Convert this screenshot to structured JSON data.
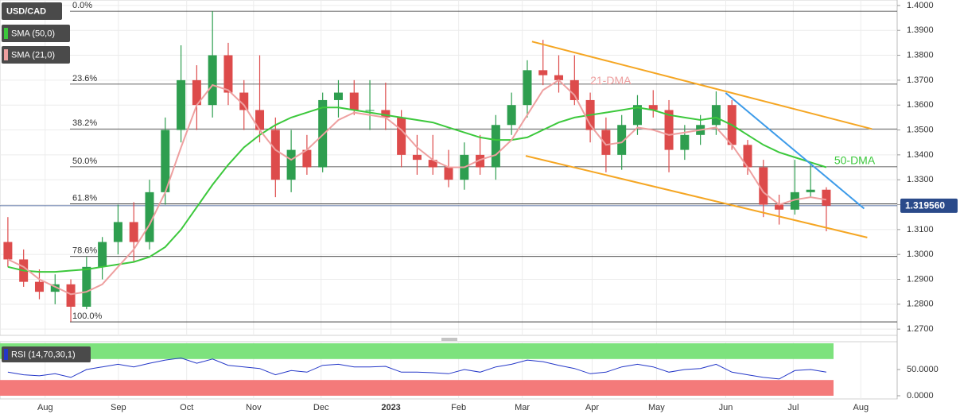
{
  "chart_data": {
    "type": "candlestick",
    "title": "USD/CAD",
    "up_color": "#2e9e4f",
    "down_color": "#dd4b4b",
    "open": [
      1.305,
      1.298,
      1.289,
      1.285,
      1.288,
      1.279,
      1.295,
      1.305,
      1.313,
      1.305,
      1.325,
      1.35,
      1.37,
      1.36,
      1.38,
      1.365,
      1.358,
      1.35,
      1.33,
      1.342,
      1.335,
      1.362,
      1.365,
      1.358,
      1.358,
      1.355,
      1.34,
      1.338,
      1.335,
      1.33,
      1.34,
      1.335,
      1.352,
      1.36,
      1.374,
      1.372,
      1.37,
      1.362,
      1.35,
      1.34,
      1.352,
      1.36,
      1.358,
      1.342,
      1.348,
      1.352,
      1.36,
      1.344,
      1.335,
      1.32,
      1.318,
      1.325,
      1.326
    ],
    "high": [
      1.315,
      1.302,
      1.294,
      1.292,
      1.29,
      1.299,
      1.307,
      1.32,
      1.321,
      1.33,
      1.355,
      1.384,
      1.376,
      1.3977,
      1.385,
      1.37,
      1.38,
      1.355,
      1.35,
      1.348,
      1.365,
      1.37,
      1.37,
      1.37,
      1.369,
      1.358,
      1.348,
      1.348,
      1.342,
      1.345,
      1.348,
      1.356,
      1.365,
      1.378,
      1.3862,
      1.38,
      1.38,
      1.365,
      1.355,
      1.356,
      1.364,
      1.366,
      1.362,
      1.352,
      1.356,
      1.3655,
      1.362,
      1.346,
      1.338,
      1.324,
      1.338,
      1.337,
      1.327
    ],
    "low": [
      1.295,
      1.287,
      1.282,
      1.28,
      1.273,
      1.278,
      1.29,
      1.3,
      1.297,
      1.302,
      1.32,
      1.345,
      1.35,
      1.355,
      1.36,
      1.35,
      1.345,
      1.323,
      1.325,
      1.332,
      1.333,
      1.355,
      1.356,
      1.35,
      1.35,
      1.335,
      1.332,
      1.332,
      1.327,
      1.326,
      1.332,
      1.33,
      1.348,
      1.355,
      1.368,
      1.365,
      1.36,
      1.345,
      1.333,
      1.334,
      1.348,
      1.355,
      1.333,
      1.338,
      1.344,
      1.348,
      1.342,
      1.332,
      1.315,
      1.312,
      1.316,
      1.323,
      1.3093
    ],
    "close": [
      1.298,
      1.289,
      1.285,
      1.288,
      1.279,
      1.295,
      1.305,
      1.313,
      1.305,
      1.325,
      1.35,
      1.37,
      1.36,
      1.38,
      1.365,
      1.358,
      1.35,
      1.33,
      1.342,
      1.335,
      1.362,
      1.365,
      1.358,
      1.358,
      1.355,
      1.34,
      1.338,
      1.335,
      1.33,
      1.34,
      1.335,
      1.352,
      1.36,
      1.374,
      1.372,
      1.37,
      1.362,
      1.35,
      1.34,
      1.352,
      1.36,
      1.358,
      1.342,
      1.348,
      1.352,
      1.36,
      1.344,
      1.335,
      1.32,
      1.318,
      1.325,
      1.326,
      1.31956
    ],
    "series": [
      {
        "name": "SMA (50,0)",
        "color": "#3cc83c",
        "values": [
          1.295,
          1.2935,
          1.293,
          1.293,
          1.2935,
          1.294,
          1.295,
          1.296,
          1.297,
          1.299,
          1.303,
          1.31,
          1.319,
          1.328,
          1.336,
          1.343,
          1.348,
          1.352,
          1.355,
          1.357,
          1.359,
          1.359,
          1.358,
          1.357,
          1.356,
          1.355,
          1.354,
          1.353,
          1.351,
          1.349,
          1.347,
          1.346,
          1.346,
          1.347,
          1.35,
          1.353,
          1.355,
          1.356,
          1.357,
          1.358,
          1.359,
          1.358,
          1.356,
          1.355,
          1.354,
          1.355,
          1.352,
          1.348,
          1.344,
          1.341,
          1.339,
          1.337,
          1.335
        ]
      },
      {
        "name": "SMA (21,0)",
        "color": "#eea0a0",
        "values": [
          1.298,
          1.295,
          1.29,
          1.287,
          1.284,
          1.285,
          1.288,
          1.295,
          1.302,
          1.312,
          1.325,
          1.343,
          1.36,
          1.368,
          1.366,
          1.36,
          1.35,
          1.342,
          1.338,
          1.342,
          1.348,
          1.354,
          1.357,
          1.356,
          1.355,
          1.35,
          1.343,
          1.338,
          1.335,
          1.335,
          1.338,
          1.34,
          1.346,
          1.356,
          1.366,
          1.37,
          1.364,
          1.352,
          1.344,
          1.345,
          1.351,
          1.35,
          1.348,
          1.349,
          1.35,
          1.351,
          1.344,
          1.335,
          1.325,
          1.32,
          1.322,
          1.323,
          1.322
        ]
      }
    ],
    "annotations": [
      {
        "text": "21-DMA",
        "color": "#eea0a0",
        "x": 37,
        "y": 1.3695
      },
      {
        "text": "50-DMA",
        "color": "#3cc83c",
        "x": 52.5,
        "y": 1.3375
      }
    ],
    "trendlines": [
      {
        "color": "#f5a623",
        "x": [
          33.3,
          54.9
        ],
        "y": [
          1.3855,
          1.3504
        ]
      },
      {
        "color": "#f5a623",
        "x": [
          32.9,
          54.6
        ],
        "y": [
          1.3396,
          1.3068
        ]
      },
      {
        "color": "#3d9be9",
        "x": [
          45.6,
          54.4
        ],
        "y": [
          1.3649,
          1.3184
        ]
      }
    ],
    "fibonacci": [
      {
        "label": "0.0%",
        "value": 1.3977
      },
      {
        "label": "23.6%",
        "value": 1.3684
      },
      {
        "label": "38.2%",
        "value": 1.3504
      },
      {
        "label": "50.0%",
        "value": 1.3352
      },
      {
        "label": "61.8%",
        "value": 1.3203
      },
      {
        "label": "78.6%",
        "value": 1.2992
      },
      {
        "label": "100.0%",
        "value": 1.2729
      }
    ],
    "last_price": {
      "value": 1.31956,
      "label": "1.319560"
    },
    "xlim": [
      -0.5,
      56.5
    ],
    "ylim": [
      1.2675,
      1.4022
    ],
    "xticks": [
      {
        "value": 2.37,
        "label": "Aug"
      },
      {
        "value": 7.02,
        "label": "Sep"
      },
      {
        "value": 11.36,
        "label": "Oct"
      },
      {
        "value": 15.61,
        "label": "Nov"
      },
      {
        "value": 19.9,
        "label": "Dec"
      },
      {
        "value": 24.34,
        "label": "2023"
      },
      {
        "value": 28.64,
        "label": "Feb"
      },
      {
        "value": 32.68,
        "label": "Mar"
      },
      {
        "value": 37.12,
        "label": "Apr"
      },
      {
        "value": 41.21,
        "label": "May"
      },
      {
        "value": 45.61,
        "label": "Jun"
      },
      {
        "value": 49.9,
        "label": "Jul"
      },
      {
        "value": 54.19,
        "label": "Aug"
      }
    ],
    "yticks": [
      {
        "value": 1.27,
        "label": "1.2700"
      },
      {
        "value": 1.28,
        "label": "1.2800"
      },
      {
        "value": 1.29,
        "label": "1.2900"
      },
      {
        "value": 1.3,
        "label": "1.3000"
      },
      {
        "value": 1.31,
        "label": "1.3100"
      },
      {
        "value": 1.32,
        "label": "1.3200"
      },
      {
        "value": 1.33,
        "label": "1.3300"
      },
      {
        "value": 1.34,
        "label": "1.3400"
      },
      {
        "value": 1.35,
        "label": "1.3500"
      },
      {
        "value": 1.36,
        "label": "1.3600"
      },
      {
        "value": 1.37,
        "label": "1.3700"
      },
      {
        "value": 1.38,
        "label": "1.3800"
      },
      {
        "value": 1.39,
        "label": "1.3900"
      },
      {
        "value": 1.4,
        "label": "1.4000"
      }
    ],
    "grid": true,
    "rsi": {
      "name": "RSI (14,70,30,1)",
      "color": "#2437c8",
      "overbought": 70,
      "oversold": 30,
      "values": [
        45,
        40,
        38,
        42,
        35,
        50,
        55,
        60,
        55,
        62,
        68,
        72,
        62,
        70,
        58,
        55,
        52,
        40,
        48,
        45,
        58,
        60,
        55,
        55,
        56,
        45,
        45,
        44,
        42,
        50,
        45,
        55,
        60,
        68,
        65,
        58,
        52,
        42,
        45,
        55,
        60,
        55,
        45,
        50,
        52,
        60,
        45,
        40,
        35,
        32,
        48,
        50,
        45
      ],
      "ylim": [
        0,
        100
      ],
      "yticks": [
        {
          "value": 0,
          "label": "0.0000"
        },
        {
          "value": 50,
          "label": "50.0000"
        }
      ]
    }
  }
}
